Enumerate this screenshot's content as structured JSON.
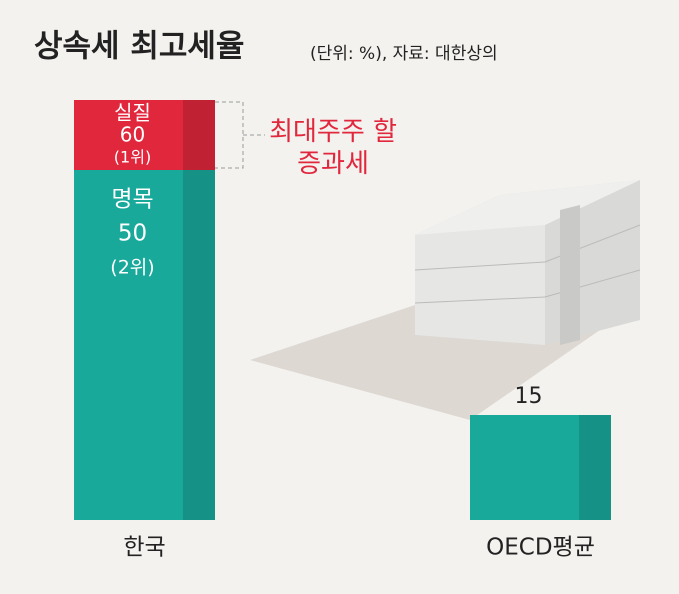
{
  "chart_data": {
    "type": "bar",
    "stacked": true,
    "title": "상속세 최고세율",
    "subtitle": "(단위: %), 자료: 대한상의",
    "categories": [
      "한국",
      "OECD평균"
    ],
    "series": [
      {
        "name": "명목",
        "color": "#19a99b",
        "values": [
          50,
          15
        ],
        "rank_labels": [
          "(2위)",
          null
        ]
      },
      {
        "name": "최대주주 할증과세",
        "color": "#e0273c",
        "values": [
          10,
          null
        ],
        "total_label": {
          "name": "실질",
          "value": 60,
          "rank": "(1위)"
        }
      }
    ]
  }
}
